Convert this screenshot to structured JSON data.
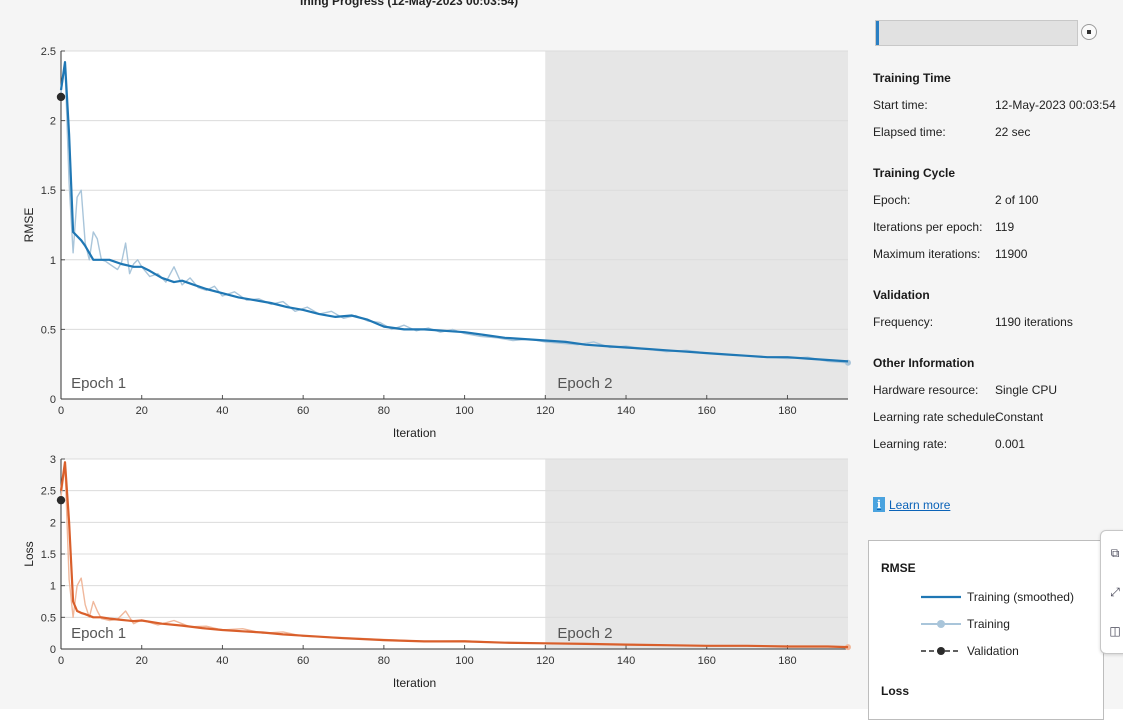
{
  "header": {
    "title_fragment": "ining Progress (12-May-2023 00:03:54)"
  },
  "chart_data": [
    {
      "type": "line",
      "name": "rmse-chart",
      "ylabel": "RMSE",
      "xlabel": "Iteration",
      "xlim": [
        0,
        195
      ],
      "ylim": [
        0,
        2.5
      ],
      "xticks": [
        0,
        20,
        40,
        60,
        80,
        100,
        120,
        140,
        160,
        180
      ],
      "yticks": [
        0,
        0.5,
        1,
        1.5,
        2,
        2.5
      ],
      "ytick_labels": [
        "0",
        "0.5",
        "1",
        "1.5",
        "2",
        "2.5"
      ],
      "grid": true,
      "epoch_boundary": 120,
      "epoch_labels": [
        {
          "text": "Epoch 1",
          "x": 2.5
        },
        {
          "text": "Epoch 2",
          "x": 123
        }
      ],
      "series": [
        {
          "name": "Training (smoothed)",
          "color": "#1f77b4",
          "x": [
            0,
            1,
            2,
            3,
            4,
            5,
            6,
            8,
            10,
            12,
            15,
            18,
            20,
            22,
            25,
            28,
            30,
            33,
            36,
            40,
            44,
            48,
            52,
            56,
            60,
            64,
            68,
            72,
            76,
            80,
            85,
            90,
            95,
            100,
            105,
            110,
            115,
            120,
            125,
            130,
            135,
            140,
            145,
            150,
            155,
            160,
            165,
            170,
            175,
            180,
            185,
            190,
            195
          ],
          "y": [
            2.22,
            2.42,
            1.9,
            1.2,
            1.17,
            1.14,
            1.1,
            1.0,
            1.0,
            1.0,
            0.97,
            0.95,
            0.95,
            0.92,
            0.87,
            0.84,
            0.85,
            0.82,
            0.79,
            0.76,
            0.73,
            0.71,
            0.69,
            0.66,
            0.64,
            0.61,
            0.59,
            0.6,
            0.57,
            0.52,
            0.5,
            0.5,
            0.49,
            0.48,
            0.46,
            0.44,
            0.43,
            0.42,
            0.41,
            0.39,
            0.38,
            0.37,
            0.36,
            0.35,
            0.34,
            0.33,
            0.32,
            0.31,
            0.3,
            0.3,
            0.29,
            0.28,
            0.27
          ]
        },
        {
          "name": "Training",
          "color": "#a9c5da",
          "x": [
            0,
            1,
            2,
            3,
            4,
            5,
            6,
            7,
            8,
            9,
            10,
            11,
            12,
            13,
            14,
            15,
            16,
            17,
            18,
            19,
            20,
            22,
            24,
            26,
            28,
            30,
            32,
            34,
            36,
            38,
            40,
            43,
            46,
            49,
            52,
            55,
            58,
            61,
            64,
            67,
            70,
            73,
            76,
            79,
            82,
            85,
            88,
            91,
            94,
            97,
            100,
            104,
            108,
            112,
            116,
            120,
            124,
            128,
            132,
            136,
            140,
            145,
            150,
            155,
            160,
            165,
            170,
            175,
            180,
            185,
            190,
            195
          ],
          "y": [
            2.2,
            2.4,
            1.55,
            1.05,
            1.45,
            1.5,
            1.12,
            1.0,
            1.2,
            1.15,
            1.0,
            0.99,
            0.97,
            0.95,
            0.93,
            0.98,
            1.12,
            0.9,
            0.97,
            1.0,
            0.95,
            0.88,
            0.9,
            0.84,
            0.95,
            0.82,
            0.87,
            0.8,
            0.78,
            0.81,
            0.74,
            0.77,
            0.71,
            0.72,
            0.68,
            0.7,
            0.63,
            0.66,
            0.61,
            0.63,
            0.58,
            0.6,
            0.56,
            0.55,
            0.5,
            0.53,
            0.49,
            0.51,
            0.48,
            0.5,
            0.47,
            0.45,
            0.44,
            0.42,
            0.43,
            0.41,
            0.4,
            0.39,
            0.41,
            0.37,
            0.38,
            0.36,
            0.34,
            0.35,
            0.33,
            0.32,
            0.31,
            0.3,
            0.29,
            0.3,
            0.27,
            0.26
          ]
        },
        {
          "name": "Validation",
          "color": "#2b2b2b",
          "x": [
            0
          ],
          "y": [
            2.17
          ]
        }
      ]
    },
    {
      "type": "line",
      "name": "loss-chart",
      "ylabel": "Loss",
      "xlabel": "Iteration",
      "xlim": [
        0,
        195
      ],
      "ylim": [
        0,
        3
      ],
      "xticks": [
        0,
        20,
        40,
        60,
        80,
        100,
        120,
        140,
        160,
        180
      ],
      "yticks": [
        0,
        0.5,
        1,
        1.5,
        2,
        2.5,
        3
      ],
      "ytick_labels": [
        "0",
        "0.5",
        "1",
        "1.5",
        "2",
        "2.5",
        "3"
      ],
      "grid": true,
      "epoch_boundary": 120,
      "epoch_labels": [
        {
          "text": "Epoch 1",
          "x": 2.5
        },
        {
          "text": "Epoch 2",
          "x": 123
        }
      ],
      "series": [
        {
          "name": "Training (smoothed)",
          "color": "#d95f2b",
          "x": [
            0,
            1,
            2,
            3,
            4,
            5,
            6,
            8,
            10,
            12,
            15,
            18,
            20,
            25,
            30,
            35,
            40,
            45,
            50,
            55,
            60,
            70,
            80,
            90,
            100,
            110,
            120,
            130,
            140,
            150,
            160,
            170,
            180,
            190,
            195
          ],
          "y": [
            2.5,
            2.95,
            2.0,
            0.75,
            0.6,
            0.57,
            0.55,
            0.5,
            0.5,
            0.48,
            0.46,
            0.44,
            0.45,
            0.4,
            0.37,
            0.33,
            0.3,
            0.28,
            0.26,
            0.23,
            0.21,
            0.17,
            0.14,
            0.12,
            0.12,
            0.1,
            0.09,
            0.08,
            0.07,
            0.06,
            0.05,
            0.05,
            0.04,
            0.04,
            0.03
          ]
        },
        {
          "name": "Training",
          "color": "#f0b89c",
          "x": [
            0,
            1,
            2,
            3,
            4,
            5,
            6,
            7,
            8,
            9,
            10,
            12,
            14,
            16,
            18,
            20,
            24,
            28,
            32,
            36,
            40,
            45,
            50,
            55,
            60,
            70,
            80,
            90,
            100,
            110,
            120,
            130,
            140,
            150,
            160,
            170,
            180,
            190,
            195
          ],
          "y": [
            2.4,
            2.9,
            1.1,
            0.5,
            1.0,
            1.12,
            0.7,
            0.5,
            0.75,
            0.6,
            0.48,
            0.45,
            0.47,
            0.6,
            0.4,
            0.46,
            0.38,
            0.45,
            0.35,
            0.36,
            0.3,
            0.32,
            0.25,
            0.27,
            0.2,
            0.18,
            0.15,
            0.12,
            0.13,
            0.1,
            0.09,
            0.08,
            0.07,
            0.06,
            0.05,
            0.05,
            0.04,
            0.04,
            0.03
          ]
        },
        {
          "name": "Validation",
          "color": "#2b2b2b",
          "x": [
            0
          ],
          "y": [
            2.35
          ]
        }
      ]
    }
  ],
  "progress": {
    "fraction": 0.016
  },
  "training_time": {
    "heading": "Training Time",
    "start_label": "Start time:",
    "start_value": "12-May-2023 00:03:54",
    "elapsed_label": "Elapsed time:",
    "elapsed_value": "22 sec"
  },
  "training_cycle": {
    "heading": "Training Cycle",
    "epoch_label": "Epoch:",
    "epoch_value": "2 of 100",
    "ipe_label": "Iterations per epoch:",
    "ipe_value": "119",
    "maxit_label": "Maximum iterations:",
    "maxit_value": "11900"
  },
  "validation": {
    "heading": "Validation",
    "freq_label": "Frequency:",
    "freq_value": "1190 iterations"
  },
  "other_info": {
    "heading": "Other Information",
    "hw_label": "Hardware resource:",
    "hw_value": "Single CPU",
    "lrs_label": "Learning rate schedule:",
    "lrs_value": "Constant",
    "lr_label": "Learning rate:",
    "lr_value": "0.001"
  },
  "learn_more": {
    "icon": "info-icon",
    "label": "Learn more"
  },
  "legend": {
    "rmse_heading": "RMSE",
    "loss_heading": "Loss",
    "entries": [
      "Training (smoothed)",
      "Training",
      "Validation"
    ]
  },
  "tool_strip": {
    "icons": [
      "export-icon",
      "zoom-fit-icon",
      "layout-icon"
    ]
  }
}
